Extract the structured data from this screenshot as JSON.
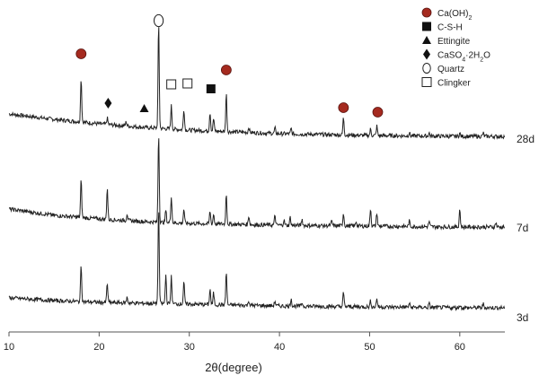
{
  "chart_data": {
    "type": "line",
    "xlabel": "2θ(degree)",
    "xlim": [
      10,
      65
    ],
    "x_ticks": [
      "10",
      "20",
      "30",
      "40",
      "50",
      "60"
    ],
    "y_axis": "none (stacked diffractograms with vertical offsets)",
    "grid": false,
    "legend_position": "top-right",
    "series": [
      {
        "name": "28d",
        "color": "#222222",
        "baseline": [
          [
            10,
            0.28
          ],
          [
            15,
            0.22
          ],
          [
            20,
            0.17
          ],
          [
            25,
            0.13
          ],
          [
            30,
            0.1
          ],
          [
            40,
            0.06
          ],
          [
            50,
            0.04
          ],
          [
            60,
            0.03
          ],
          [
            65,
            0.03
          ]
        ],
        "peaks": [
          [
            18.0,
            0.42
          ],
          [
            20.9,
            0.06
          ],
          [
            23.0,
            0.04
          ],
          [
            26.6,
            1.0
          ],
          [
            28.0,
            0.22
          ],
          [
            29.4,
            0.2
          ],
          [
            32.3,
            0.18
          ],
          [
            32.7,
            0.12
          ],
          [
            34.1,
            0.36
          ],
          [
            36.6,
            0.05
          ],
          [
            39.5,
            0.05
          ],
          [
            41.3,
            0.05
          ],
          [
            47.1,
            0.16
          ],
          [
            50.1,
            0.06
          ],
          [
            50.8,
            0.09
          ],
          [
            54.4,
            0.03
          ],
          [
            56.6,
            0.03
          ],
          [
            60.0,
            0.03
          ],
          [
            62.6,
            0.03
          ]
        ]
      },
      {
        "name": "7d",
        "color": "#222222",
        "baseline": [
          [
            10,
            0.23
          ],
          [
            15,
            0.16
          ],
          [
            20,
            0.12
          ],
          [
            25,
            0.09
          ],
          [
            30,
            0.07
          ],
          [
            40,
            0.05
          ],
          [
            50,
            0.04
          ],
          [
            60,
            0.03
          ],
          [
            65,
            0.03
          ]
        ],
        "peaks": [
          [
            18.0,
            0.42
          ],
          [
            20.9,
            0.35
          ],
          [
            23.1,
            0.08
          ],
          [
            26.6,
            1.0
          ],
          [
            27.4,
            0.14
          ],
          [
            28.0,
            0.3
          ],
          [
            29.4,
            0.16
          ],
          [
            32.3,
            0.14
          ],
          [
            32.7,
            0.11
          ],
          [
            34.1,
            0.34
          ],
          [
            36.6,
            0.1
          ],
          [
            39.5,
            0.11
          ],
          [
            40.5,
            0.06
          ],
          [
            41.2,
            0.09
          ],
          [
            42.5,
            0.07
          ],
          [
            45.8,
            0.05
          ],
          [
            47.1,
            0.14
          ],
          [
            48.5,
            0.05
          ],
          [
            50.1,
            0.2
          ],
          [
            50.8,
            0.15
          ],
          [
            54.4,
            0.06
          ],
          [
            56.6,
            0.06
          ],
          [
            60.0,
            0.2
          ],
          [
            64.0,
            0.05
          ]
        ]
      },
      {
        "name": "3d",
        "color": "#222222",
        "baseline": [
          [
            10,
            0.14
          ],
          [
            15,
            0.11
          ],
          [
            20,
            0.09
          ],
          [
            25,
            0.08
          ],
          [
            30,
            0.07
          ],
          [
            40,
            0.05
          ],
          [
            50,
            0.04
          ],
          [
            60,
            0.03
          ],
          [
            65,
            0.03
          ]
        ],
        "peaks": [
          [
            18.0,
            0.38
          ],
          [
            20.9,
            0.2
          ],
          [
            23.1,
            0.06
          ],
          [
            26.6,
            1.0
          ],
          [
            27.4,
            0.3
          ],
          [
            28.0,
            0.28
          ],
          [
            29.4,
            0.24
          ],
          [
            32.3,
            0.16
          ],
          [
            32.7,
            0.12
          ],
          [
            34.1,
            0.34
          ],
          [
            36.6,
            0.05
          ],
          [
            39.5,
            0.05
          ],
          [
            41.3,
            0.08
          ],
          [
            42.5,
            0.04
          ],
          [
            47.1,
            0.14
          ],
          [
            50.1,
            0.06
          ],
          [
            50.8,
            0.09
          ],
          [
            54.4,
            0.04
          ],
          [
            56.6,
            0.04
          ],
          [
            60.0,
            0.03
          ],
          [
            62.6,
            0.04
          ]
        ]
      }
    ],
    "phase_markers": [
      {
        "phase": "Ca(OH)2",
        "symbol": "filled-circle",
        "x": [
          18.0,
          34.1,
          47.1,
          50.9
        ]
      },
      {
        "phase": "CaSO4·2H2O",
        "symbol": "filled-diamond",
        "x": [
          21.0
        ]
      },
      {
        "phase": "Ettingite",
        "symbol": "filled-triangle",
        "x": [
          25.0
        ]
      },
      {
        "phase": "Quartz",
        "symbol": "open-circle",
        "x": [
          26.6
        ]
      },
      {
        "phase": "Clingker",
        "symbol": "open-square",
        "x": [
          28.0,
          29.8
        ]
      },
      {
        "phase": "C-S-H",
        "symbol": "filled-square",
        "x": [
          32.4
        ]
      }
    ],
    "marker_color": "#a52a1f"
  },
  "legend": {
    "items": [
      {
        "symbol": "filled-circle",
        "label_html": "Ca(OH)<tspan baseline-shift=\"sub\" font-size=\"7\">2</tspan>"
      },
      {
        "symbol": "filled-square",
        "label_html": "C-S-H"
      },
      {
        "symbol": "filled-triangle",
        "label_html": "Ettingite"
      },
      {
        "symbol": "filled-diamond",
        "label_html": "CaSO<tspan baseline-shift=\"sub\" font-size=\"7\">4</tspan>·2H<tspan baseline-shift=\"sub\" font-size=\"7\">2</tspan>O"
      },
      {
        "symbol": "open-circle",
        "label_html": "Quartz"
      },
      {
        "symbol": "open-square",
        "label_html": "Clingker"
      }
    ]
  }
}
